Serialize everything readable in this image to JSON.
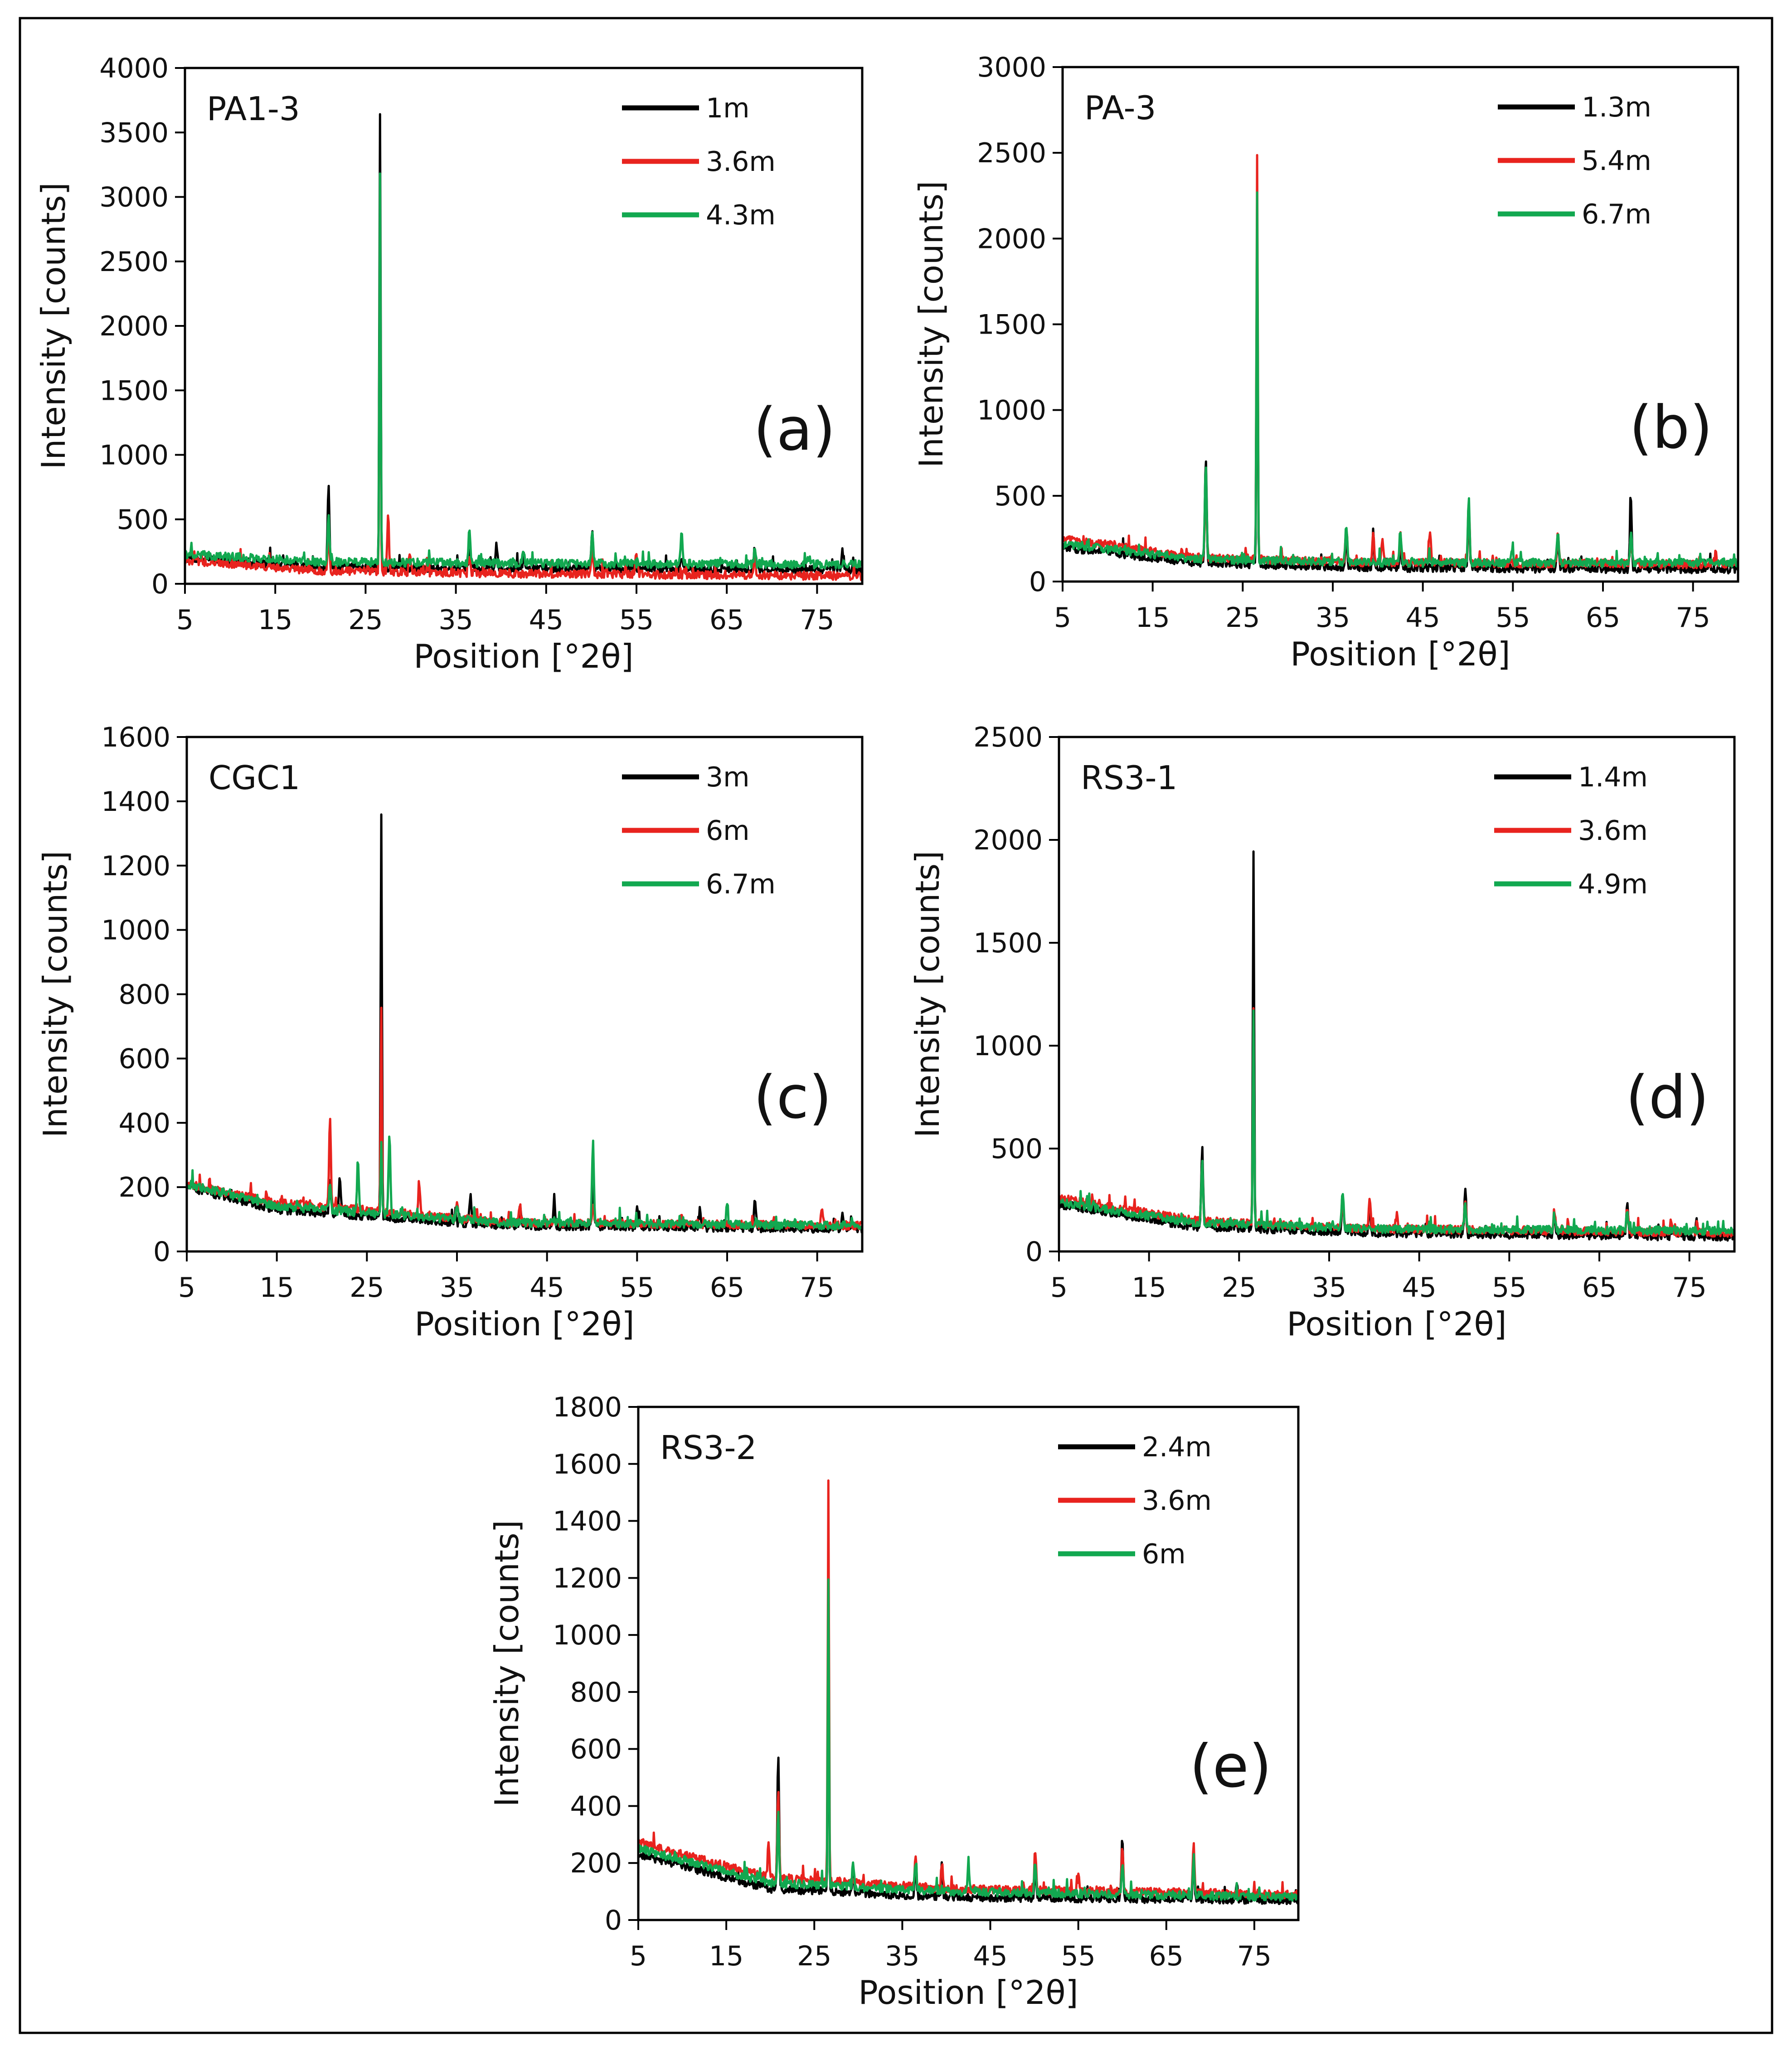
{
  "colors": {
    "black": "#000000",
    "red": "#e8231e",
    "green": "#12a850"
  },
  "chart_data": [
    {
      "id": "a",
      "type": "line",
      "title": "PA1-3",
      "panel_label": "(a)",
      "xlabel": "Position [°2θ]",
      "ylabel": "Intensity [counts]",
      "xlim": [
        5,
        80
      ],
      "ylim": [
        0,
        4000
      ],
      "xticks": [
        5,
        15,
        25,
        35,
        45,
        55,
        65,
        75
      ],
      "yticks": [
        0,
        500,
        1000,
        1500,
        2000,
        2500,
        3000,
        3500,
        4000
      ],
      "legend_position": "top-right",
      "series": [
        {
          "name": "1m",
          "color": "#000000",
          "baseline": [
            [
              5,
              200
            ],
            [
              20,
              130
            ],
            [
              40,
              120
            ],
            [
              80,
              110
            ]
          ],
          "peaks": [
            [
              20.9,
              780
            ],
            [
              26.6,
              3650
            ],
            [
              36.5,
              250
            ],
            [
              39.5,
              320
            ],
            [
              42.5,
              220
            ],
            [
              50.1,
              400
            ],
            [
              60,
              200
            ],
            [
              68.1,
              290
            ],
            [
              77.8,
              250
            ]
          ]
        },
        {
          "name": "3.6m",
          "color": "#e8231e",
          "baseline": [
            [
              5,
              180
            ],
            [
              20,
              100
            ],
            [
              40,
              80
            ],
            [
              80,
              60
            ]
          ],
          "peaks": [
            [
              20.9,
              400
            ],
            [
              26.6,
              2900
            ],
            [
              27.5,
              530
            ],
            [
              29.9,
              250
            ],
            [
              36.5,
              200
            ],
            [
              50.1,
              300
            ],
            [
              55,
              240
            ],
            [
              68.1,
              230
            ]
          ]
        },
        {
          "name": "4.3m",
          "color": "#12a850",
          "baseline": [
            [
              5,
              230
            ],
            [
              20,
              170
            ],
            [
              40,
              160
            ],
            [
              80,
              150
            ]
          ],
          "peaks": [
            [
              20.9,
              520
            ],
            [
              26.6,
              3110
            ],
            [
              36.5,
              420
            ],
            [
              42.5,
              250
            ],
            [
              50.1,
              380
            ],
            [
              60,
              390
            ],
            [
              68.1,
              280
            ]
          ]
        }
      ]
    },
    {
      "id": "b",
      "type": "line",
      "title": "PA-3",
      "panel_label": "(b)",
      "xlabel": "Position [°2θ]",
      "ylabel": "Intensity [counts]",
      "xlim": [
        5,
        80
      ],
      "ylim": [
        0,
        3000
      ],
      "xticks": [
        5,
        15,
        25,
        35,
        45,
        55,
        65,
        75
      ],
      "yticks": [
        0,
        500,
        1000,
        1500,
        2000,
        2500,
        3000
      ],
      "legend_position": "top-right",
      "series": [
        {
          "name": "1.3m",
          "color": "#000000",
          "baseline": [
            [
              5,
              200
            ],
            [
              20,
              110
            ],
            [
              40,
              80
            ],
            [
              80,
              70
            ]
          ],
          "peaks": [
            [
              20.9,
              710
            ],
            [
              26.6,
              2080
            ],
            [
              36.5,
              260
            ],
            [
              39.5,
              260
            ],
            [
              42.5,
              240
            ],
            [
              50.1,
              420
            ],
            [
              60,
              270
            ],
            [
              68.1,
              460
            ]
          ]
        },
        {
          "name": "5.4m",
          "color": "#e8231e",
          "baseline": [
            [
              5,
              250
            ],
            [
              20,
              140
            ],
            [
              40,
              110
            ],
            [
              80,
              100
            ]
          ],
          "peaks": [
            [
              20.9,
              600
            ],
            [
              26.6,
              2510
            ],
            [
              36.5,
              320
            ],
            [
              39.5,
              300
            ],
            [
              40.5,
              250
            ],
            [
              42.5,
              300
            ],
            [
              45.8,
              300
            ],
            [
              50.1,
              450
            ],
            [
              60,
              300
            ],
            [
              68.1,
              250
            ],
            [
              77.5,
              160
            ]
          ]
        },
        {
          "name": "6.7m",
          "color": "#12a850",
          "baseline": [
            [
              5,
              220
            ],
            [
              20,
              130
            ],
            [
              40,
              110
            ],
            [
              80,
              110
            ]
          ],
          "peaks": [
            [
              20.9,
              680
            ],
            [
              26.6,
              2270
            ],
            [
              36.5,
              330
            ],
            [
              42.5,
              310
            ],
            [
              50.1,
              480
            ],
            [
              54.9,
              200
            ],
            [
              60,
              310
            ],
            [
              68.1,
              280
            ]
          ]
        }
      ]
    },
    {
      "id": "c",
      "type": "line",
      "title": "CGC1",
      "panel_label": "(c)",
      "xlabel": "Position [°2θ]",
      "ylabel": "Intensity [counts]",
      "xlim": [
        5,
        80
      ],
      "ylim": [
        0,
        1600
      ],
      "xticks": [
        5,
        15,
        25,
        35,
        45,
        55,
        65,
        75
      ],
      "yticks": [
        0,
        200,
        400,
        600,
        800,
        1000,
        1200,
        1400,
        1600
      ],
      "legend_position": "top-right",
      "series": [
        {
          "name": "3m",
          "color": "#000000",
          "baseline": [
            [
              5,
              200
            ],
            [
              15,
              130
            ],
            [
              25,
              110
            ],
            [
              40,
              80
            ],
            [
              80,
              70
            ]
          ],
          "peaks": [
            [
              20.9,
              230
            ],
            [
              22,
              230
            ],
            [
              26.6,
              1350
            ],
            [
              36.5,
              180
            ],
            [
              42,
              150
            ],
            [
              45.8,
              170
            ],
            [
              50.1,
              210
            ],
            [
              55,
              140
            ],
            [
              62,
              130
            ],
            [
              68.1,
              165
            ],
            [
              77.8,
              120
            ]
          ]
        },
        {
          "name": "6m",
          "color": "#e8231e",
          "baseline": [
            [
              5,
              210
            ],
            [
              15,
              150
            ],
            [
              25,
              130
            ],
            [
              40,
              90
            ],
            [
              80,
              80
            ]
          ],
          "peaks": [
            [
              20.9,
              405
            ],
            [
              26.6,
              750
            ],
            [
              30.8,
              215
            ],
            [
              35,
              150
            ],
            [
              42,
              140
            ],
            [
              50.1,
              150
            ],
            [
              60,
              120
            ],
            [
              75.5,
              135
            ]
          ]
        },
        {
          "name": "6.7m",
          "color": "#12a850",
          "baseline": [
            [
              5,
              210
            ],
            [
              15,
              140
            ],
            [
              25,
              120
            ],
            [
              40,
              90
            ],
            [
              80,
              80
            ]
          ],
          "peaks": [
            [
              20.9,
              210
            ],
            [
              24,
              280
            ],
            [
              26.6,
              350
            ],
            [
              27.5,
              365
            ],
            [
              35,
              150
            ],
            [
              50.1,
              340
            ],
            [
              65,
              145
            ]
          ]
        }
      ]
    },
    {
      "id": "d",
      "type": "line",
      "title": "RS3-1",
      "panel_label": "(d)",
      "xlabel": "Position [°2θ]",
      "ylabel": "Intensity [counts]",
      "xlim": [
        5,
        80
      ],
      "ylim": [
        0,
        2500
      ],
      "xticks": [
        5,
        15,
        25,
        35,
        45,
        55,
        65,
        75
      ],
      "yticks": [
        0,
        500,
        1000,
        1500,
        2000,
        2500
      ],
      "legend_position": "top-right",
      "series": [
        {
          "name": "1.4m",
          "color": "#000000",
          "baseline": [
            [
              5,
              230
            ],
            [
              20,
              120
            ],
            [
              40,
              90
            ],
            [
              80,
              70
            ]
          ],
          "peaks": [
            [
              20.9,
              510
            ],
            [
              26.6,
              1940
            ],
            [
              36.5,
              280
            ],
            [
              39.5,
              230
            ],
            [
              50.1,
              270
            ],
            [
              60,
              190
            ],
            [
              68.1,
              230
            ],
            [
              75.8,
              150
            ]
          ]
        },
        {
          "name": "3.6m",
          "color": "#e8231e",
          "baseline": [
            [
              5,
              260
            ],
            [
              20,
              150
            ],
            [
              40,
              110
            ],
            [
              80,
              90
            ]
          ],
          "peaks": [
            [
              20.9,
              430
            ],
            [
              26.6,
              1200
            ],
            [
              36.5,
              270
            ],
            [
              39.5,
              260
            ],
            [
              42.5,
              180
            ],
            [
              50.1,
              260
            ],
            [
              60,
              200
            ],
            [
              68.1,
              200
            ],
            [
              73,
              160
            ]
          ]
        },
        {
          "name": "4.9m",
          "color": "#12a850",
          "baseline": [
            [
              5,
              240
            ],
            [
              20,
              140
            ],
            [
              40,
              110
            ],
            [
              80,
              100
            ]
          ],
          "peaks": [
            [
              20.9,
              450
            ],
            [
              26.6,
              1160
            ],
            [
              36.5,
              300
            ],
            [
              50.1,
              250
            ],
            [
              60,
              180
            ],
            [
              68.1,
              200
            ]
          ]
        }
      ]
    },
    {
      "id": "e",
      "type": "line",
      "title": "RS3-2",
      "panel_label": "(e)",
      "xlabel": "Position [°2θ]",
      "ylabel": "Intensity [counts]",
      "xlim": [
        5,
        80
      ],
      "ylim": [
        0,
        1800
      ],
      "xticks": [
        5,
        15,
        25,
        35,
        45,
        55,
        65,
        75
      ],
      "yticks": [
        0,
        200,
        400,
        600,
        800,
        1000,
        1200,
        1400,
        1600,
        1800
      ],
      "legend_position": "top-right",
      "series": [
        {
          "name": "2.4m",
          "color": "#000000",
          "baseline": [
            [
              5,
              230
            ],
            [
              20,
              110
            ],
            [
              40,
              80
            ],
            [
              80,
              70
            ]
          ],
          "peaks": [
            [
              20.9,
              585
            ],
            [
              26.6,
              1200
            ],
            [
              29.4,
              180
            ],
            [
              36.5,
              200
            ],
            [
              39.5,
              190
            ],
            [
              50.1,
              200
            ],
            [
              60,
              295
            ],
            [
              68.1,
              230
            ],
            [
              73,
              130
            ]
          ]
        },
        {
          "name": "3.6m",
          "color": "#e8231e",
          "baseline": [
            [
              5,
              270
            ],
            [
              20,
              150
            ],
            [
              40,
              110
            ],
            [
              80,
              90
            ]
          ],
          "peaks": [
            [
              19.8,
              270
            ],
            [
              20.9,
              450
            ],
            [
              26.6,
              1540
            ],
            [
              36.5,
              220
            ],
            [
              39.5,
              200
            ],
            [
              50.1,
              250
            ],
            [
              55,
              160
            ],
            [
              60,
              250
            ],
            [
              68.1,
              260
            ]
          ]
        },
        {
          "name": "6m",
          "color": "#12a850",
          "baseline": [
            [
              5,
              250
            ],
            [
              20,
              130
            ],
            [
              40,
              100
            ],
            [
              80,
              80
            ]
          ],
          "peaks": [
            [
              20.9,
              370
            ],
            [
              26.6,
              1200
            ],
            [
              29.4,
              210
            ],
            [
              36.5,
              200
            ],
            [
              42.5,
              180
            ],
            [
              50.1,
              200
            ],
            [
              60,
              200
            ],
            [
              68.1,
              220
            ]
          ]
        }
      ]
    }
  ]
}
